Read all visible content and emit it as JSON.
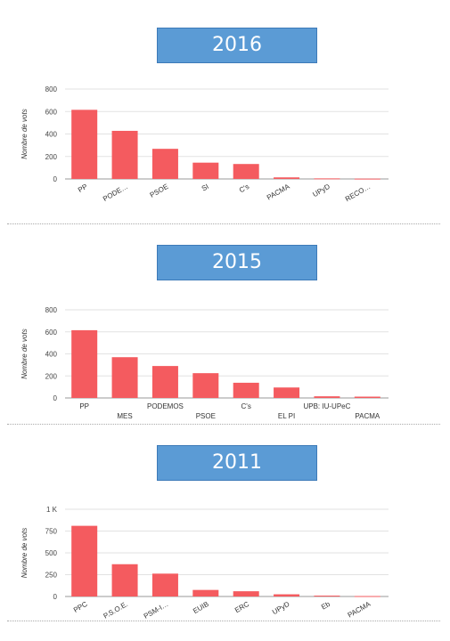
{
  "sections": [
    {
      "year": "2016",
      "chart_index": 0
    },
    {
      "year": "2015",
      "chart_index": 1
    },
    {
      "year": "2011",
      "chart_index": 2
    }
  ],
  "chart_data": [
    {
      "type": "bar",
      "title": "2016",
      "ylabel": "Nombre de vots",
      "ylim": [
        0,
        800
      ],
      "yticks": [
        "0",
        "200",
        "400",
        "600",
        "800"
      ],
      "ytick_values": [
        0,
        200,
        400,
        600,
        800
      ],
      "categories": [
        "PP",
        "PODE…",
        "PSOE",
        "SI",
        "C's",
        "PACMA",
        "UPyD",
        "RECO…"
      ],
      "values": [
        615,
        428,
        268,
        145,
        133,
        14,
        5,
        3
      ],
      "label_style": "rotated",
      "color": "#f45b5f",
      "grid": true
    },
    {
      "type": "bar",
      "title": "2015",
      "ylabel": "Nombre de vots",
      "ylim": [
        0,
        800
      ],
      "yticks": [
        "0",
        "200",
        "400",
        "600",
        "800"
      ],
      "ytick_values": [
        0,
        200,
        400,
        600,
        800
      ],
      "categories": [
        "PP",
        "MES",
        "PODEMOS",
        "PSOE",
        "C's",
        "EL PI",
        "UPB: IU-UPeC",
        "PACMA"
      ],
      "values": [
        615,
        370,
        290,
        225,
        138,
        95,
        15,
        12
      ],
      "label_style": "staggered",
      "color": "#f45b5f",
      "grid": true
    },
    {
      "type": "bar",
      "title": "2011",
      "ylabel": "Nombre de vots",
      "ylim": [
        0,
        1000
      ],
      "yticks": [
        "0",
        "250",
        "500",
        "750",
        "1 K"
      ],
      "ytick_values": [
        0,
        250,
        500,
        750,
        1000
      ],
      "categories": [
        "PPC",
        "P.S.O.E.",
        "PSM-I…",
        "EUIB",
        "ERC",
        "UPyD",
        "Eb",
        "PACMA"
      ],
      "values": [
        810,
        370,
        262,
        75,
        60,
        25,
        10,
        5
      ],
      "label_style": "rotated",
      "color": "#f45b5f",
      "grid": true
    }
  ]
}
